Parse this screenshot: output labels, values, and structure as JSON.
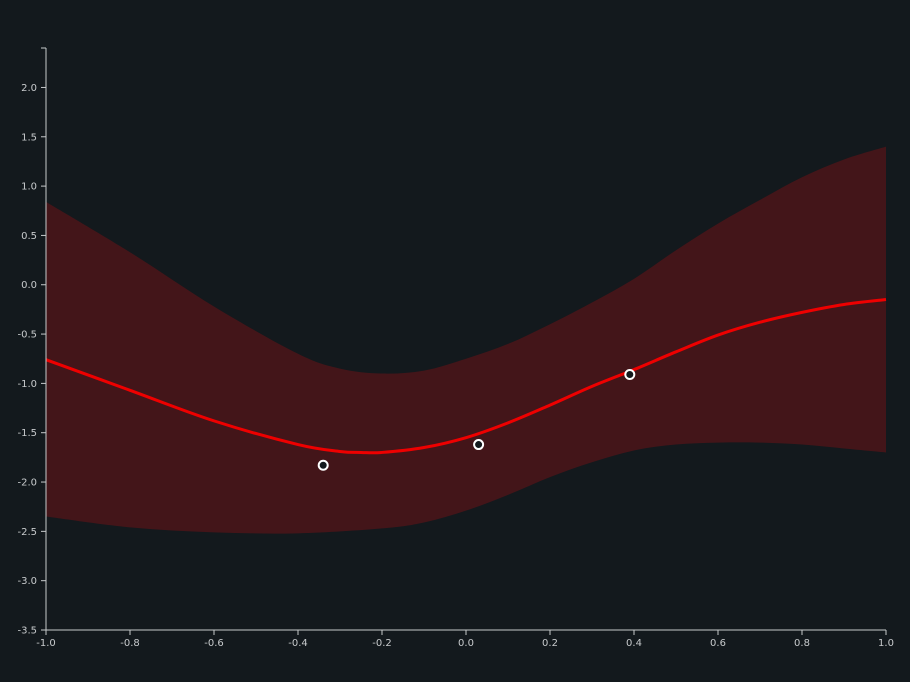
{
  "chart_data": {
    "type": "line",
    "title": "",
    "xlabel": "",
    "ylabel": "",
    "xlim": [
      -1.0,
      1.0
    ],
    "ylim": [
      -3.5,
      2.4
    ],
    "x_ticks": [
      "-1.0",
      "-0.8",
      "-0.6",
      "-0.4",
      "-0.2",
      "0.0",
      "0.2",
      "0.4",
      "0.6",
      "0.8",
      "1.0"
    ],
    "y_ticks": [
      "-3.5",
      "-3.0",
      "-2.5",
      "-2.0",
      "-1.5",
      "-1.0",
      "-0.5",
      "0.0",
      "0.5",
      "1.0",
      "1.5",
      "2.0"
    ],
    "grid": false,
    "legend": "none",
    "colors": {
      "background": "#13191d",
      "axis": "#c7cacc",
      "mean_line": "#ee0000",
      "band_fill": "#431519",
      "points_stroke": "#ffffff"
    },
    "series": [
      {
        "kind": "mean",
        "x": [
          -1.0,
          -0.8,
          -0.6,
          -0.4,
          -0.3,
          -0.25,
          -0.2,
          -0.1,
          0.0,
          0.1,
          0.2,
          0.3,
          0.4,
          0.5,
          0.6,
          0.7,
          0.8,
          0.9,
          1.0
        ],
        "y": [
          -0.76,
          -1.07,
          -1.38,
          -1.62,
          -1.69,
          -1.7,
          -1.7,
          -1.65,
          -1.55,
          -1.4,
          -1.22,
          -1.03,
          -0.86,
          -0.68,
          -0.51,
          -0.38,
          -0.28,
          -0.2,
          -0.15
        ]
      },
      {
        "kind": "upper",
        "x": [
          -1.0,
          -0.8,
          -0.6,
          -0.4,
          -0.3,
          -0.2,
          -0.1,
          0.0,
          0.1,
          0.2,
          0.3,
          0.4,
          0.5,
          0.6,
          0.7,
          0.8,
          0.9,
          1.0
        ],
        "y": [
          0.84,
          0.33,
          -0.22,
          -0.7,
          -0.85,
          -0.9,
          -0.87,
          -0.75,
          -0.6,
          -0.4,
          -0.18,
          0.06,
          0.35,
          0.62,
          0.86,
          1.09,
          1.27,
          1.4
        ]
      },
      {
        "kind": "lower",
        "x": [
          -1.0,
          -0.8,
          -0.6,
          -0.4,
          -0.2,
          -0.1,
          0.0,
          0.1,
          0.2,
          0.3,
          0.4,
          0.5,
          0.6,
          0.7,
          0.8,
          0.9,
          1.0
        ],
        "y": [
          -2.35,
          -2.46,
          -2.51,
          -2.52,
          -2.47,
          -2.41,
          -2.29,
          -2.13,
          -1.95,
          -1.8,
          -1.68,
          -1.62,
          -1.6,
          -1.6,
          -1.62,
          -1.66,
          -1.7
        ]
      },
      {
        "kind": "observations",
        "x": [
          -0.34,
          0.03,
          0.39
        ],
        "y": [
          -1.83,
          -1.62,
          -0.91
        ]
      }
    ]
  }
}
